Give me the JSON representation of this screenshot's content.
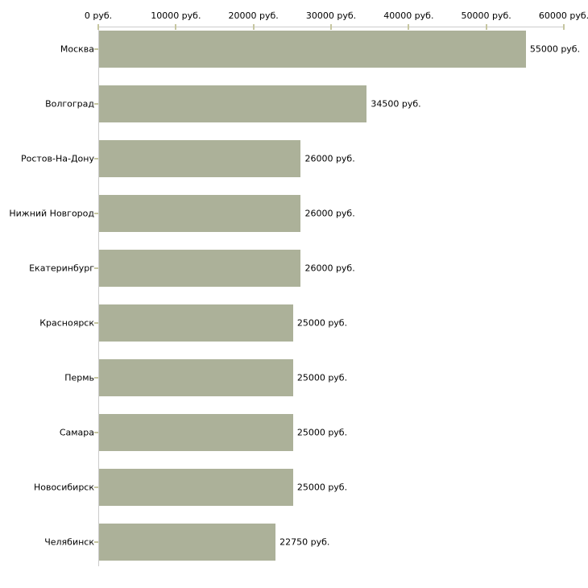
{
  "chart_data": {
    "type": "bar",
    "orientation": "horizontal",
    "title": "",
    "xlabel": "",
    "ylabel": "",
    "categories": [
      "Москва",
      "Волгоград",
      "Ростов-На-Дону",
      "Нижний Новгород",
      "Екатеринбург",
      "Красноярск",
      "Пермь",
      "Самара",
      "Новосибирск",
      "Челябинск"
    ],
    "values": [
      55000,
      34500,
      26000,
      26000,
      26000,
      25000,
      25000,
      25000,
      25000,
      22750
    ],
    "bar_labels": [
      "55000 руб.",
      "34500 руб.",
      "26000 руб.",
      "26000 руб.",
      "26000 руб.",
      "25000 руб.",
      "25000 руб.",
      "25000 руб.",
      "25000 руб.",
      "22750 руб."
    ],
    "x_axis": {
      "position": "top",
      "min": 0,
      "max": 60000,
      "ticks": [
        0,
        10000,
        20000,
        30000,
        40000,
        50000,
        60000
      ],
      "tick_labels": [
        "0 руб.",
        "10000 руб.",
        "20000 руб.",
        "30000 руб.",
        "40000 руб.",
        "50000 руб.",
        "60000 руб."
      ]
    },
    "grid": false,
    "legend": false,
    "colors": {
      "bar": "#acb199",
      "axis_line": "#cccccc",
      "tick": "#c6c6a0",
      "text": "#000000",
      "background": "#ffffff"
    }
  }
}
